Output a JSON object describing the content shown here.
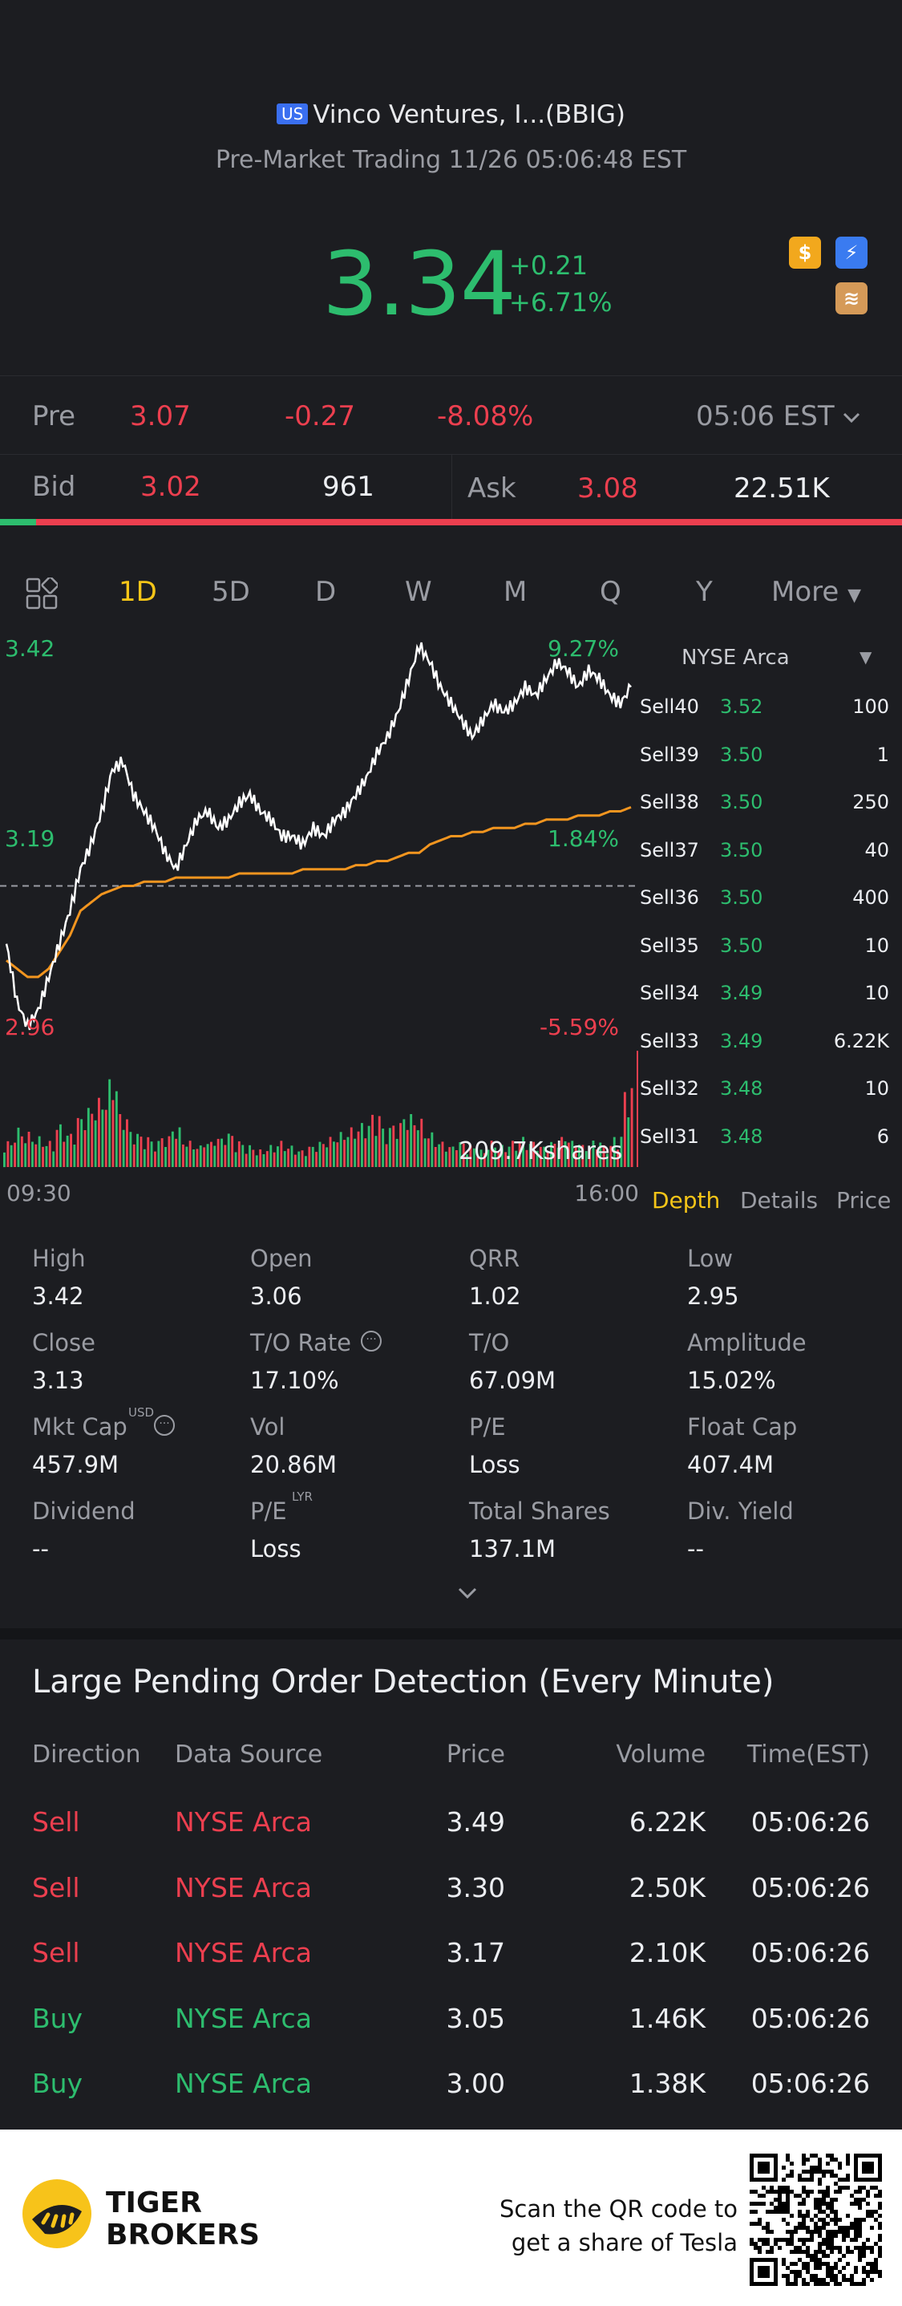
{
  "header": {
    "market_badge": "US",
    "name": "Vinco Ventures, I...(BBIG)",
    "session": "Pre-Market Trading 11/26 05:06:48 EST",
    "price": "3.34",
    "change_abs": "+0.21",
    "change_pct": "+6.71%",
    "icons": [
      "dollar-icon",
      "flash-icon",
      "layers-icon"
    ]
  },
  "pre": {
    "label": "Pre",
    "price": "3.07",
    "change": "-0.27",
    "change_pct": "-8.08%",
    "time": "05:06 EST"
  },
  "bidask": {
    "bid_label": "Bid",
    "bid_price": "3.02",
    "bid_size": "961",
    "ask_label": "Ask",
    "ask_price": "3.08",
    "ask_size": "22.51K",
    "bid_share": 0.04
  },
  "tabs": {
    "items": [
      "1D",
      "5D",
      "D",
      "W",
      "M",
      "Q",
      "Y",
      "More"
    ],
    "active": "1D"
  },
  "chart_data": {
    "type": "line",
    "title": "",
    "xlabel": "",
    "ylabel": "",
    "x_start_label": "09:30",
    "x_end_label": "16:00",
    "high_label": "3.42",
    "mid_label": "3.19",
    "low_label": "2.96",
    "high_pct": "9.27%",
    "mid_pct": "1.84%",
    "low_pct": "-5.59%",
    "volume_label": "209.7Kshares",
    "ylim": [
      2.96,
      3.42
    ],
    "prev_close": 3.13,
    "series": [
      {
        "name": "",
        "values": [
          3.06,
          2.99,
          2.96,
          2.98,
          3.02,
          3.06,
          3.1,
          3.15,
          3.18,
          3.22,
          3.27,
          3.28,
          3.24,
          3.22,
          3.2,
          3.17,
          3.15,
          3.18,
          3.21,
          3.22,
          3.2,
          3.21,
          3.23,
          3.24,
          3.22,
          3.21,
          3.19,
          3.19,
          3.18,
          3.2,
          3.19,
          3.21,
          3.22,
          3.24,
          3.26,
          3.29,
          3.31,
          3.34,
          3.38,
          3.42,
          3.4,
          3.37,
          3.35,
          3.33,
          3.31,
          3.33,
          3.35,
          3.34,
          3.35,
          3.37,
          3.36,
          3.38,
          3.4,
          3.39,
          3.37,
          3.39,
          3.38,
          3.36,
          3.35,
          3.37
        ]
      },
      {
        "name": "",
        "values": [
          3.04,
          3.03,
          3.02,
          3.02,
          3.03,
          3.05,
          3.07,
          3.1,
          3.11,
          3.12,
          3.125,
          3.13,
          3.13,
          3.135,
          3.135,
          3.135,
          3.14,
          3.14,
          3.14,
          3.14,
          3.14,
          3.14,
          3.145,
          3.145,
          3.145,
          3.145,
          3.145,
          3.145,
          3.15,
          3.15,
          3.15,
          3.15,
          3.15,
          3.155,
          3.155,
          3.16,
          3.16,
          3.165,
          3.17,
          3.17,
          3.18,
          3.185,
          3.19,
          3.19,
          3.195,
          3.195,
          3.2,
          3.2,
          3.2,
          3.205,
          3.205,
          3.21,
          3.21,
          3.21,
          3.215,
          3.215,
          3.215,
          3.22,
          3.22,
          3.225
        ]
      }
    ],
    "volume": [
      6,
      9,
      8,
      7,
      6,
      10,
      8,
      12,
      14,
      16,
      20,
      12,
      8,
      7,
      6,
      7,
      9,
      6,
      5,
      6,
      7,
      8,
      6,
      5,
      4,
      5,
      6,
      5,
      4,
      5,
      6,
      7,
      8,
      9,
      10,
      12,
      9,
      10,
      12,
      11,
      8,
      6,
      5,
      6,
      5,
      4,
      6,
      5,
      6,
      7,
      6,
      5,
      6,
      7,
      6,
      5,
      6,
      5,
      7,
      18
    ],
    "colors": {
      "price": "#ffffff",
      "avg": "#f2951f",
      "vol_up": "#2dbd6e",
      "vol_down": "#ec3f4f"
    }
  },
  "depth": {
    "exchange": "NYSE Arca",
    "rows": [
      {
        "level": "Sell40",
        "price": "3.52",
        "size": "100"
      },
      {
        "level": "Sell39",
        "price": "3.50",
        "size": "1"
      },
      {
        "level": "Sell38",
        "price": "3.50",
        "size": "250"
      },
      {
        "level": "Sell37",
        "price": "3.50",
        "size": "40"
      },
      {
        "level": "Sell36",
        "price": "3.50",
        "size": "400"
      },
      {
        "level": "Sell35",
        "price": "3.50",
        "size": "10"
      },
      {
        "level": "Sell34",
        "price": "3.49",
        "size": "10"
      },
      {
        "level": "Sell33",
        "price": "3.49",
        "size": "6.22K"
      },
      {
        "level": "Sell32",
        "price": "3.48",
        "size": "10"
      },
      {
        "level": "Sell31",
        "price": "3.48",
        "size": "6"
      }
    ],
    "tabs": [
      "Depth",
      "Details",
      "Price"
    ],
    "active_tab": "Depth"
  },
  "stats": [
    {
      "label": "High",
      "value": "3.42"
    },
    {
      "label": "Open",
      "value": "3.06"
    },
    {
      "label": "QRR",
      "value": "1.02"
    },
    {
      "label": "Low",
      "value": "2.95"
    },
    {
      "label": "Close",
      "value": "3.13"
    },
    {
      "label": "T/O Rate",
      "value": "17.10%"
    },
    {
      "label": "T/O",
      "value": "67.09M"
    },
    {
      "label": "Amplitude",
      "value": "15.02%"
    },
    {
      "label": "Mkt Cap",
      "value": "457.9M"
    },
    {
      "label": "Vol",
      "value": "20.86M"
    },
    {
      "label": "P/E",
      "value": "Loss"
    },
    {
      "label": "Float Cap",
      "value": "407.4M"
    },
    {
      "label": "Dividend",
      "value": "--"
    },
    {
      "label": "P/E",
      "value": "Loss"
    },
    {
      "label": "Total Shares",
      "value": "137.1M"
    },
    {
      "label": "Div. Yield",
      "value": "--"
    }
  ],
  "stat_superscripts": {
    "mkt_cap": "USD",
    "pe_lyr": "LYR"
  },
  "orders": {
    "title": "Large Pending Order Detection (Every Minute)",
    "columns": [
      "Direction",
      "Data Source",
      "Price",
      "Volume",
      "Time(EST)"
    ],
    "rows": [
      {
        "direction": "Sell",
        "source": "NYSE Arca",
        "price": "3.49",
        "volume": "6.22K",
        "time": "05:06:26"
      },
      {
        "direction": "Sell",
        "source": "NYSE Arca",
        "price": "3.30",
        "volume": "2.50K",
        "time": "05:06:26"
      },
      {
        "direction": "Sell",
        "source": "NYSE Arca",
        "price": "3.17",
        "volume": "2.10K",
        "time": "05:06:26"
      },
      {
        "direction": "Buy",
        "source": "NYSE Arca",
        "price": "3.05",
        "volume": "1.46K",
        "time": "05:06:26"
      },
      {
        "direction": "Buy",
        "source": "NYSE Arca",
        "price": "3.00",
        "volume": "1.38K",
        "time": "05:06:26"
      }
    ]
  },
  "footer": {
    "brand_line1": "TIGER",
    "brand_line2": "BROKERS",
    "scan_line1": "Scan the QR code to",
    "scan_line2": "get a share of Tesla"
  }
}
